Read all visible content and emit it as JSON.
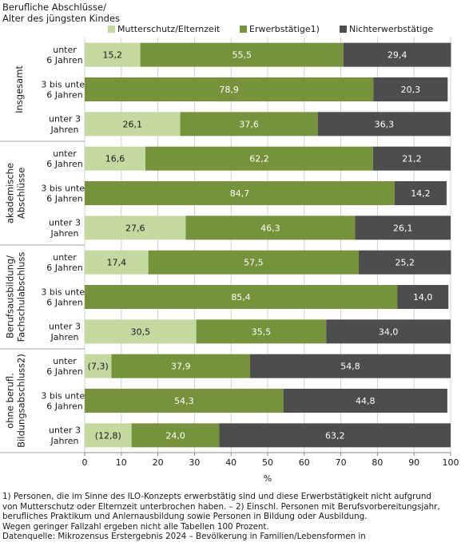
{
  "title_lines": [
    "Berufliche Abschlüsse/",
    "Alter des jüngsten Kindes"
  ],
  "footnotes": [
    "1) Personen, die im Sinne des ILO-Konzepts erwerbstätig sind und diese Erwerbstätigkeit nicht aufgrund",
    "von Mutterschutz oder Elternzeit unterbrochen haben. – 2) Einschl. Personen mit Berufsvorbereitungsjahr,",
    "berufliches Praktikum und Anlernausbildung sowie Personen in Bildung oder Ausbildung.",
    "Wegen geringer Fallzahl ergeben nicht alle Tabellen 100 Prozent.",
    "Datenquelle: Mikrozensus Erstergebnis 2024 – Bevölkerung in Familien/Lebensformen in"
  ],
  "colors": {
    "mutterschutz": "#c4d9a0",
    "erwerb": "#76933c",
    "nicht": "#4d4d4d",
    "light_text": "#1a1a1a",
    "dark_text": "#ffffff"
  },
  "chart_data": {
    "type": "bar",
    "orientation": "horizontal",
    "stacked": true,
    "xlabel": "%",
    "xlim": [
      0,
      100
    ],
    "xticks": [
      "0",
      "10",
      "20",
      "30",
      "40",
      "50",
      "60",
      "70",
      "80",
      "90",
      "100"
    ],
    "legend_position": "top",
    "series_names": [
      "Mutterschutz/Elternzeit",
      "Erwerbstätige1)",
      "Nichterwerbstätige"
    ],
    "groups": [
      {
        "label": [
          "Insgesamt"
        ],
        "rows": [
          {
            "label": [
              "unter",
              "6 Jahren"
            ],
            "values": [
              15.2,
              55.5,
              29.4
            ],
            "labels": [
              "15,2",
              "55,5",
              "29,4"
            ]
          },
          {
            "label": [
              "3 bis unter",
              "6 Jahren"
            ],
            "values": [
              0,
              78.9,
              20.3
            ],
            "labels": [
              "",
              "78,9",
              "20,3"
            ]
          },
          {
            "label": [
              "unter 3",
              "Jahren"
            ],
            "values": [
              26.1,
              37.6,
              36.3
            ],
            "labels": [
              "26,1",
              "37,6",
              "36,3"
            ]
          }
        ]
      },
      {
        "label": [
          "akademische",
          "Abschlüsse"
        ],
        "rows": [
          {
            "label": [
              "unter",
              "6 Jahren"
            ],
            "values": [
              16.6,
              62.2,
              21.2
            ],
            "labels": [
              "16,6",
              "62,2",
              "21,2"
            ]
          },
          {
            "label": [
              "3 bis unter",
              "6 Jahren"
            ],
            "values": [
              0,
              84.7,
              14.2
            ],
            "labels": [
              "",
              "84,7",
              "14,2"
            ]
          },
          {
            "label": [
              "unter 3",
              "Jahren"
            ],
            "values": [
              27.6,
              46.3,
              26.1
            ],
            "labels": [
              "27,6",
              "46,3",
              "26,1"
            ]
          }
        ]
      },
      {
        "label": [
          "Berufsausbildung/",
          "Fachschulabschluss"
        ],
        "rows": [
          {
            "label": [
              "unter",
              "6 Jahren"
            ],
            "values": [
              17.4,
              57.5,
              25.2
            ],
            "labels": [
              "17,4",
              "57,5",
              "25,2"
            ]
          },
          {
            "label": [
              "3 bis unter",
              "6 Jahren"
            ],
            "values": [
              0,
              85.4,
              14.0
            ],
            "labels": [
              "",
              "85,4",
              "14,0"
            ]
          },
          {
            "label": [
              "unter 3",
              "Jahren"
            ],
            "values": [
              30.5,
              35.5,
              34.0
            ],
            "labels": [
              "30,5",
              "35,5",
              "34,0"
            ]
          }
        ]
      },
      {
        "label": [
          "ohne berufl.",
          "Bildungsabschluss2)"
        ],
        "rows": [
          {
            "label": [
              "unter",
              "6 Jahren"
            ],
            "values": [
              7.3,
              37.9,
              54.8
            ],
            "labels": [
              "(7,3)",
              "37,9",
              "54,8"
            ]
          },
          {
            "label": [
              "3 bis unter",
              "6 Jahren"
            ],
            "values": [
              0,
              54.3,
              44.8
            ],
            "labels": [
              "",
              "54,3",
              "44,8"
            ]
          },
          {
            "label": [
              "unter 3",
              "Jahren"
            ],
            "values": [
              12.8,
              24.0,
              63.2
            ],
            "labels": [
              "(12,8)",
              "24,0",
              "63,2"
            ]
          }
        ]
      }
    ]
  }
}
